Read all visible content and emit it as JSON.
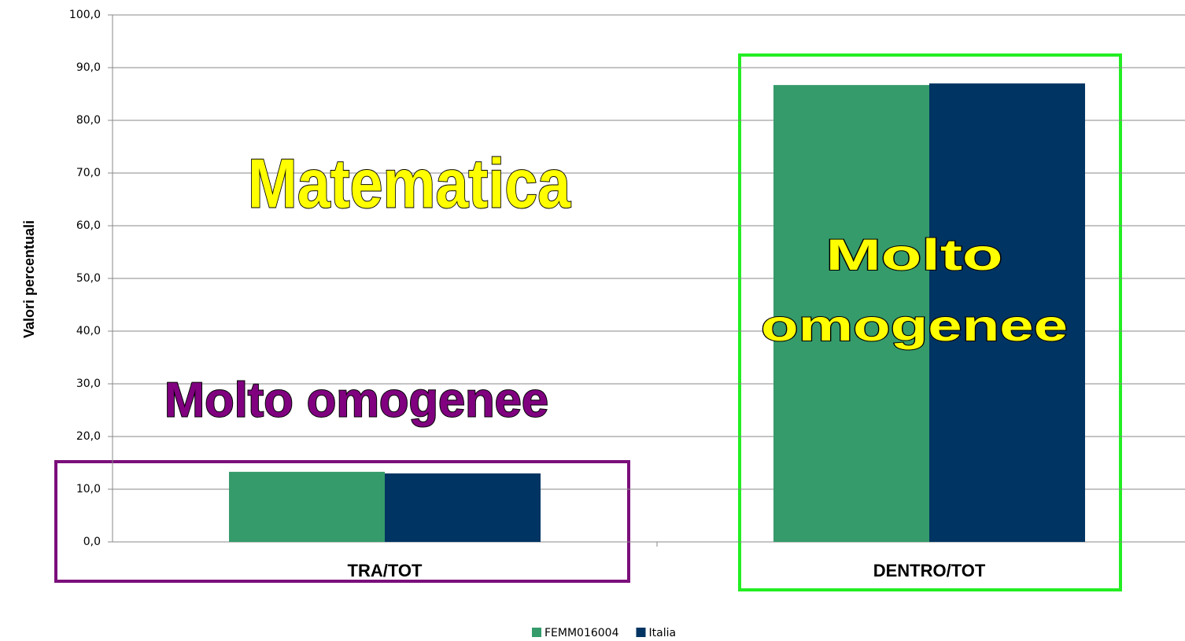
{
  "chart_data": {
    "type": "bar",
    "categories": [
      "TRA/TOT",
      "DENTRO/TOT"
    ],
    "series": [
      {
        "name": "FEMM016004",
        "color": "#359b6b",
        "values": [
          13.3,
          86.7
        ]
      },
      {
        "name": "Italia",
        "color": "#003462",
        "values": [
          13.0,
          87.0
        ]
      }
    ],
    "y_label": "Valori percentuali",
    "ylim": [
      0,
      100
    ],
    "yticks": [
      {
        "value": 0,
        "label": "0,0"
      },
      {
        "value": 10,
        "label": "10,0"
      },
      {
        "value": 20,
        "label": "20,0"
      },
      {
        "value": 30,
        "label": "30,0"
      },
      {
        "value": 40,
        "label": "40,0"
      },
      {
        "value": 50,
        "label": "50,0"
      },
      {
        "value": 60,
        "label": "60,0"
      },
      {
        "value": 70,
        "label": "70,0"
      },
      {
        "value": 80,
        "label": "80,0"
      },
      {
        "value": 90,
        "label": "90,0"
      },
      {
        "value": 100,
        "label": "100,0"
      }
    ],
    "grid": true,
    "legend": "bottom",
    "annotations": [
      "Matematica",
      "Molto omogenee",
      "Molto",
      "omogenee"
    ]
  }
}
